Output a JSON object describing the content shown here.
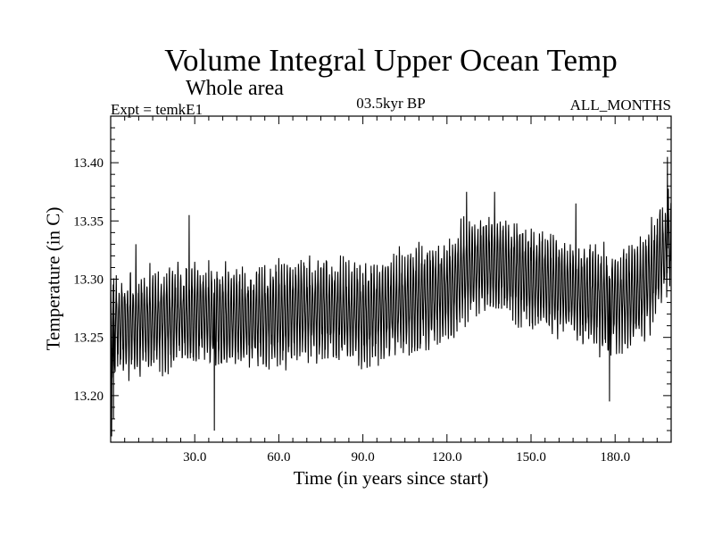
{
  "chart_data": {
    "type": "line",
    "title": "Volume Integral Upper Ocean Temp",
    "subtitle": "Whole area",
    "experiment": "Expt = temkE1",
    "period": "03.5kyr BP",
    "months": "ALL_MONTHS",
    "xlabel": "Time (in years since start)",
    "ylabel": "Temperature (in C)",
    "xlim": [
      0,
      200
    ],
    "ylim": [
      13.16,
      13.44
    ],
    "xticks": [
      30,
      60,
      90,
      120,
      150,
      180
    ],
    "xtick_labels": [
      "30.0",
      "60.0",
      "90.0",
      "120.0",
      "150.0",
      "180.0"
    ],
    "yticks": [
      13.2,
      13.25,
      13.3,
      13.35,
      13.4
    ],
    "ytick_labels": [
      "13.20",
      "13.25",
      "13.30",
      "13.35",
      "13.40"
    ],
    "series": [
      {
        "name": "temperature",
        "samples_per_year": 12,
        "seasonal_amplitude": 0.042,
        "trend_x": [
          0,
          15,
          30,
          45,
          60,
          75,
          90,
          105,
          120,
          128,
          135,
          150,
          165,
          180,
          190,
          200
        ],
        "trend_y": [
          13.26,
          13.265,
          13.27,
          13.265,
          13.27,
          13.275,
          13.27,
          13.28,
          13.29,
          13.31,
          13.315,
          13.3,
          13.29,
          13.28,
          13.29,
          13.335
        ],
        "extremes_x": [
          0.3,
          1.0,
          9.0,
          28.0,
          37.0,
          127.0,
          137.0,
          166.0,
          178.0,
          198.7
        ],
        "extremes_y": [
          13.165,
          13.18,
          13.33,
          13.355,
          13.17,
          13.375,
          13.375,
          13.365,
          13.195,
          13.405
        ]
      }
    ]
  }
}
